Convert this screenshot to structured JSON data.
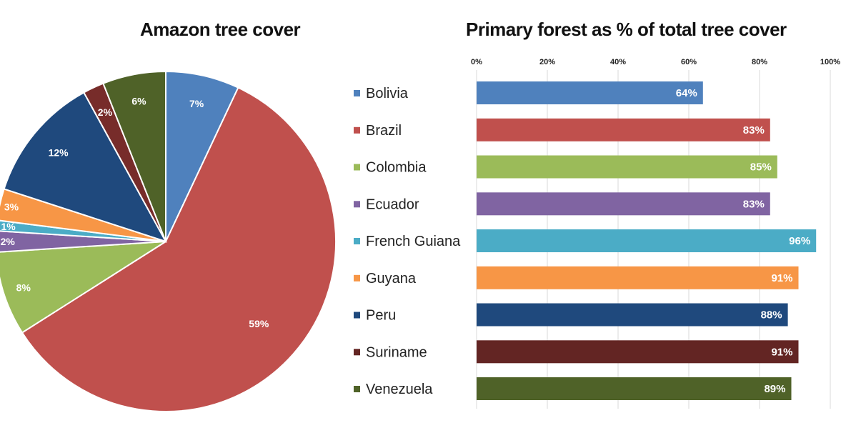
{
  "chart_data": [
    {
      "type": "pie",
      "title": "Amazon tree cover",
      "slices": [
        {
          "label": "Bolivia",
          "value": 7,
          "display": "7%",
          "color": "#4f81bd"
        },
        {
          "label": "Brazil",
          "value": 59,
          "display": "59%",
          "color": "#c0504d"
        },
        {
          "label": "Colombia",
          "value": 8,
          "display": "8%",
          "color": "#9bbb59"
        },
        {
          "label": "Ecuador",
          "value": 2,
          "display": "2%",
          "color": "#8064a2"
        },
        {
          "label": "French Guiana",
          "value": 1,
          "display": "1%",
          "color": "#4bacc6"
        },
        {
          "label": "Guyana",
          "value": 3,
          "display": "3%",
          "color": "#f79646"
        },
        {
          "label": "Peru",
          "value": 12,
          "display": "12%",
          "color": "#1f497d"
        },
        {
          "label": "Suriname",
          "value": 2,
          "display": "2%",
          "color": "#772c2a"
        },
        {
          "label": "Venezuela",
          "value": 6,
          "display": "6%",
          "color": "#4f6228"
        }
      ]
    },
    {
      "type": "bar",
      "orientation": "horizontal",
      "title": "Primary forest as % of total tree cover",
      "xlim": [
        0,
        100
      ],
      "ticks": [
        "0%",
        "20%",
        "40%",
        "60%",
        "80%",
        "100%"
      ],
      "legend_position": "left",
      "grid": true,
      "categories": [
        "Bolivia",
        "Brazil",
        "Colombia",
        "Ecuador",
        "French Guiana",
        "Guyana",
        "Peru",
        "Suriname",
        "Venezuela"
      ],
      "values": [
        64,
        83,
        85,
        83,
        96,
        91,
        88,
        91,
        89
      ],
      "labels": [
        "64%",
        "83%",
        "85%",
        "83%",
        "96%",
        "91%",
        "88%",
        "91%",
        "89%"
      ],
      "colors": [
        "#4f81bd",
        "#c0504d",
        "#9bbb59",
        "#8064a2",
        "#4bacc6",
        "#f79646",
        "#1f497d",
        "#632523",
        "#4f6228"
      ]
    }
  ]
}
